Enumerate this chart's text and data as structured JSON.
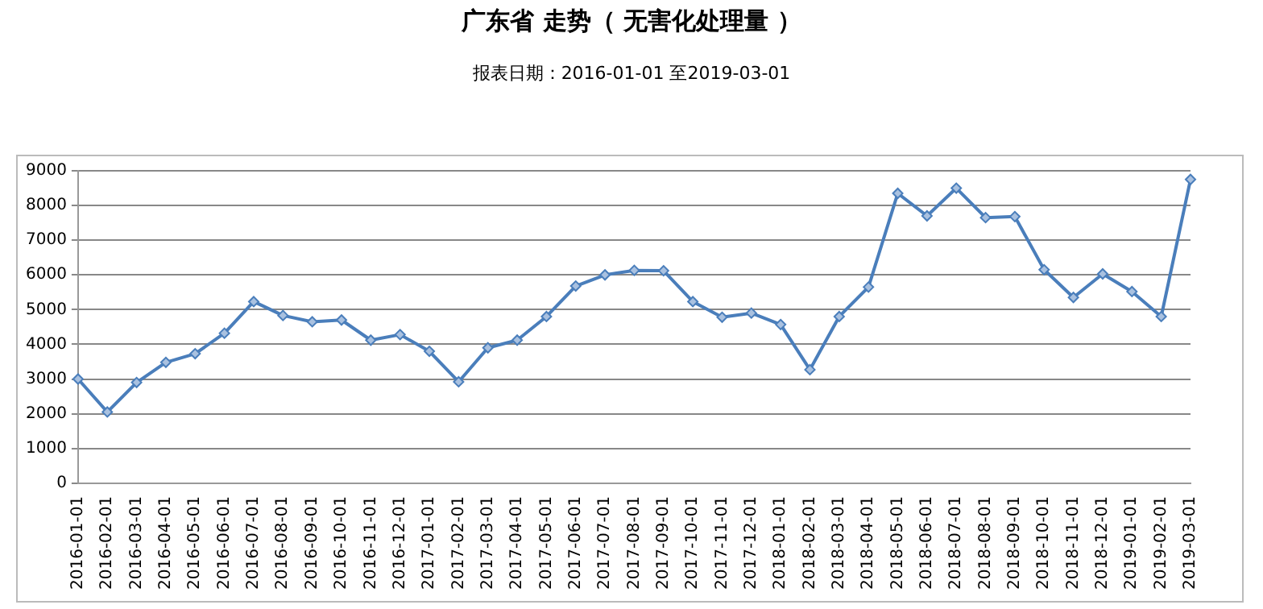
{
  "chart_data": {
    "type": "line",
    "title": "广东省 走势（ 无害化处理量 ）",
    "subtitle": "报表日期：2016-01-01 至2019-03-01",
    "categories": [
      "2016-01-01",
      "2016-02-01",
      "2016-03-01",
      "2016-04-01",
      "2016-05-01",
      "2016-06-01",
      "2016-07-01",
      "2016-08-01",
      "2016-09-01",
      "2016-10-01",
      "2016-11-01",
      "2016-12-01",
      "2017-01-01",
      "2017-02-01",
      "2017-03-01",
      "2017-04-01",
      "2017-05-01",
      "2017-06-01",
      "2017-07-01",
      "2017-08-01",
      "2017-09-01",
      "2017-10-01",
      "2017-11-01",
      "2017-12-01",
      "2018-01-01",
      "2018-02-01",
      "2018-03-01",
      "2018-04-01",
      "2018-05-01",
      "2018-06-01",
      "2018-07-01",
      "2018-08-01",
      "2018-09-01",
      "2018-10-01",
      "2018-11-01",
      "2018-12-01",
      "2019-01-01",
      "2019-02-01",
      "2019-03-01"
    ],
    "series": [
      {
        "color": "#4a7ebb",
        "values": [
          3000,
          2050,
          2900,
          3480,
          3730,
          4320,
          5230,
          4830,
          4650,
          4700,
          4120,
          4280,
          3800,
          2920,
          3900,
          4120,
          4800,
          5680,
          6000,
          6130,
          6120,
          5230,
          4780,
          4900,
          4570,
          3270,
          4800,
          5650,
          8350,
          7700,
          8500,
          7650,
          7680,
          6150,
          5350,
          6030,
          5520,
          4800,
          8750
        ]
      }
    ],
    "ylim": [
      0,
      9000
    ],
    "yticks": [
      0,
      1000,
      2000,
      3000,
      4000,
      5000,
      6000,
      7000,
      8000,
      9000
    ],
    "grid": "y",
    "legend": false,
    "marker": "diamond",
    "line_style": "solid"
  }
}
